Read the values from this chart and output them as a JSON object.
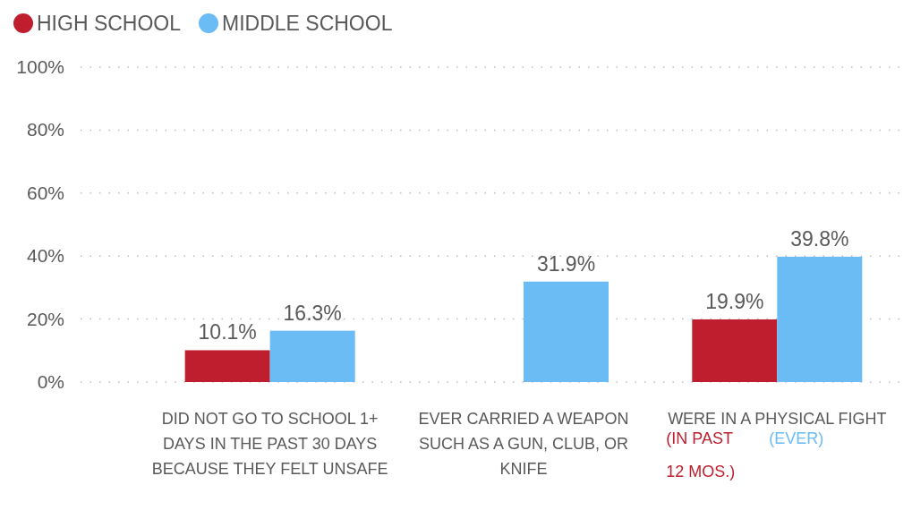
{
  "chart_data": {
    "type": "bar",
    "categories": [
      "DID NOT GO TO SCHOOL 1+ DAYS IN THE PAST 30 DAYS BECAUSE THEY FELT UNSAFE",
      "EVER CARRIED A WEAPON SUCH AS A GUN, CLUB, OR KNIFE",
      "WERE IN A PHYSICAL FIGHT"
    ],
    "series": [
      {
        "name": "HIGH SCHOOL",
        "color": "#be1e2d",
        "values": [
          10.1,
          null,
          19.9
        ],
        "value_labels": [
          "10.1%",
          null,
          "19.9%"
        ]
      },
      {
        "name": "MIDDLE SCHOOL",
        "color": "#6bbbf5",
        "values": [
          16.3,
          31.9,
          39.8
        ],
        "value_labels": [
          "16.3%",
          "31.9%",
          "39.8%"
        ]
      }
    ],
    "ylim": [
      0,
      100
    ],
    "yticks": [
      {
        "value": 0,
        "label": "0%"
      },
      {
        "value": 20,
        "label": "20%"
      },
      {
        "value": 40,
        "label": "40%"
      },
      {
        "value": 60,
        "label": "60%"
      },
      {
        "value": 80,
        "label": "80%"
      },
      {
        "value": 100,
        "label": "100%"
      }
    ],
    "grid": "y",
    "legend": "top left",
    "annotations": [
      "(IN PAST 12 MOS.)",
      "(EVER)"
    ]
  }
}
